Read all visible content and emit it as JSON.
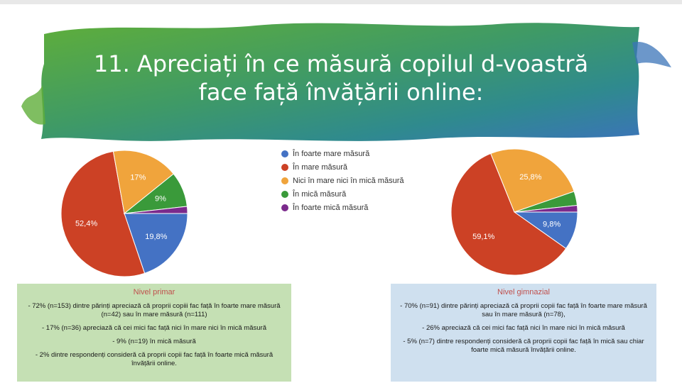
{
  "title": {
    "line1": "11. Apreciați în ce măsură copilul d-voastră",
    "line2": "face față învățării online:"
  },
  "legend": [
    {
      "label": "În foarte mare măsură",
      "color": "#4472c4"
    },
    {
      "label": "În mare măsură",
      "color": "#cc4125"
    },
    {
      "label": "Nici în mare nici în mică măsură",
      "color": "#f0a43c"
    },
    {
      "label": "În mică măsură",
      "color": "#3a9a3a"
    },
    {
      "label": "În foarte mică măsură",
      "color": "#7b2a8c"
    }
  ],
  "chart_data": [
    {
      "type": "pie",
      "series_labels": [
        "În foarte mare măsură",
        "În mare măsură",
        "Nici în mare nici în mică măsură",
        "În mică măsură",
        "În foarte mică măsură"
      ],
      "values": [
        19.8,
        52.4,
        17,
        9,
        1.8
      ],
      "data_labels": [
        "19,8%",
        "52,4%",
        "17%",
        "9%",
        ""
      ],
      "colors": [
        "#4472c4",
        "#cc4125",
        "#f0a43c",
        "#3a9a3a",
        "#7b2a8c"
      ]
    },
    {
      "type": "pie",
      "series_labels": [
        "În foarte mare măsură",
        "În mare măsură",
        "Nici în mare nici în mică măsură",
        "În mică măsură",
        "În foarte mică măsură"
      ],
      "values": [
        9.8,
        59.1,
        25.8,
        3.6,
        1.7
      ],
      "data_labels": [
        "9,8%",
        "59,1%",
        "25,8%",
        "",
        ""
      ],
      "colors": [
        "#4472c4",
        "#cc4125",
        "#f0a43c",
        "#3a9a3a",
        "#7b2a8c"
      ]
    }
  ],
  "panels": {
    "primar": {
      "heading": "Nivel primar",
      "items": [
        "- 72% (n=153) dintre părinți apreciază că proprii copiii fac față în foarte mare măsură (n=42) sau în mare măsură (n=111)",
        "- 17% (n=36) apreciază că cei mici fac față nici în mare nici în mică măsură",
        "- 9% (n=19) în mică măsură",
        "- 2% dintre respondenți consideră că proprii copii fac față în foarte mică măsură învățării online."
      ]
    },
    "gimnazial": {
      "heading": "Nivel gimnazial",
      "items": [
        "- 70% (n=91) dintre părinți apreciază că proprii copii fac față în foarte mare măsură sau în mare măsură (n=78),",
        "- 26% apreciază că cei mici fac față nici în mare nici în mică măsură",
        "- 5% (n=7) dintre respondenți consideră că proprii copii fac față în mică sau chiar foarte mică măsură învățării online."
      ]
    }
  }
}
